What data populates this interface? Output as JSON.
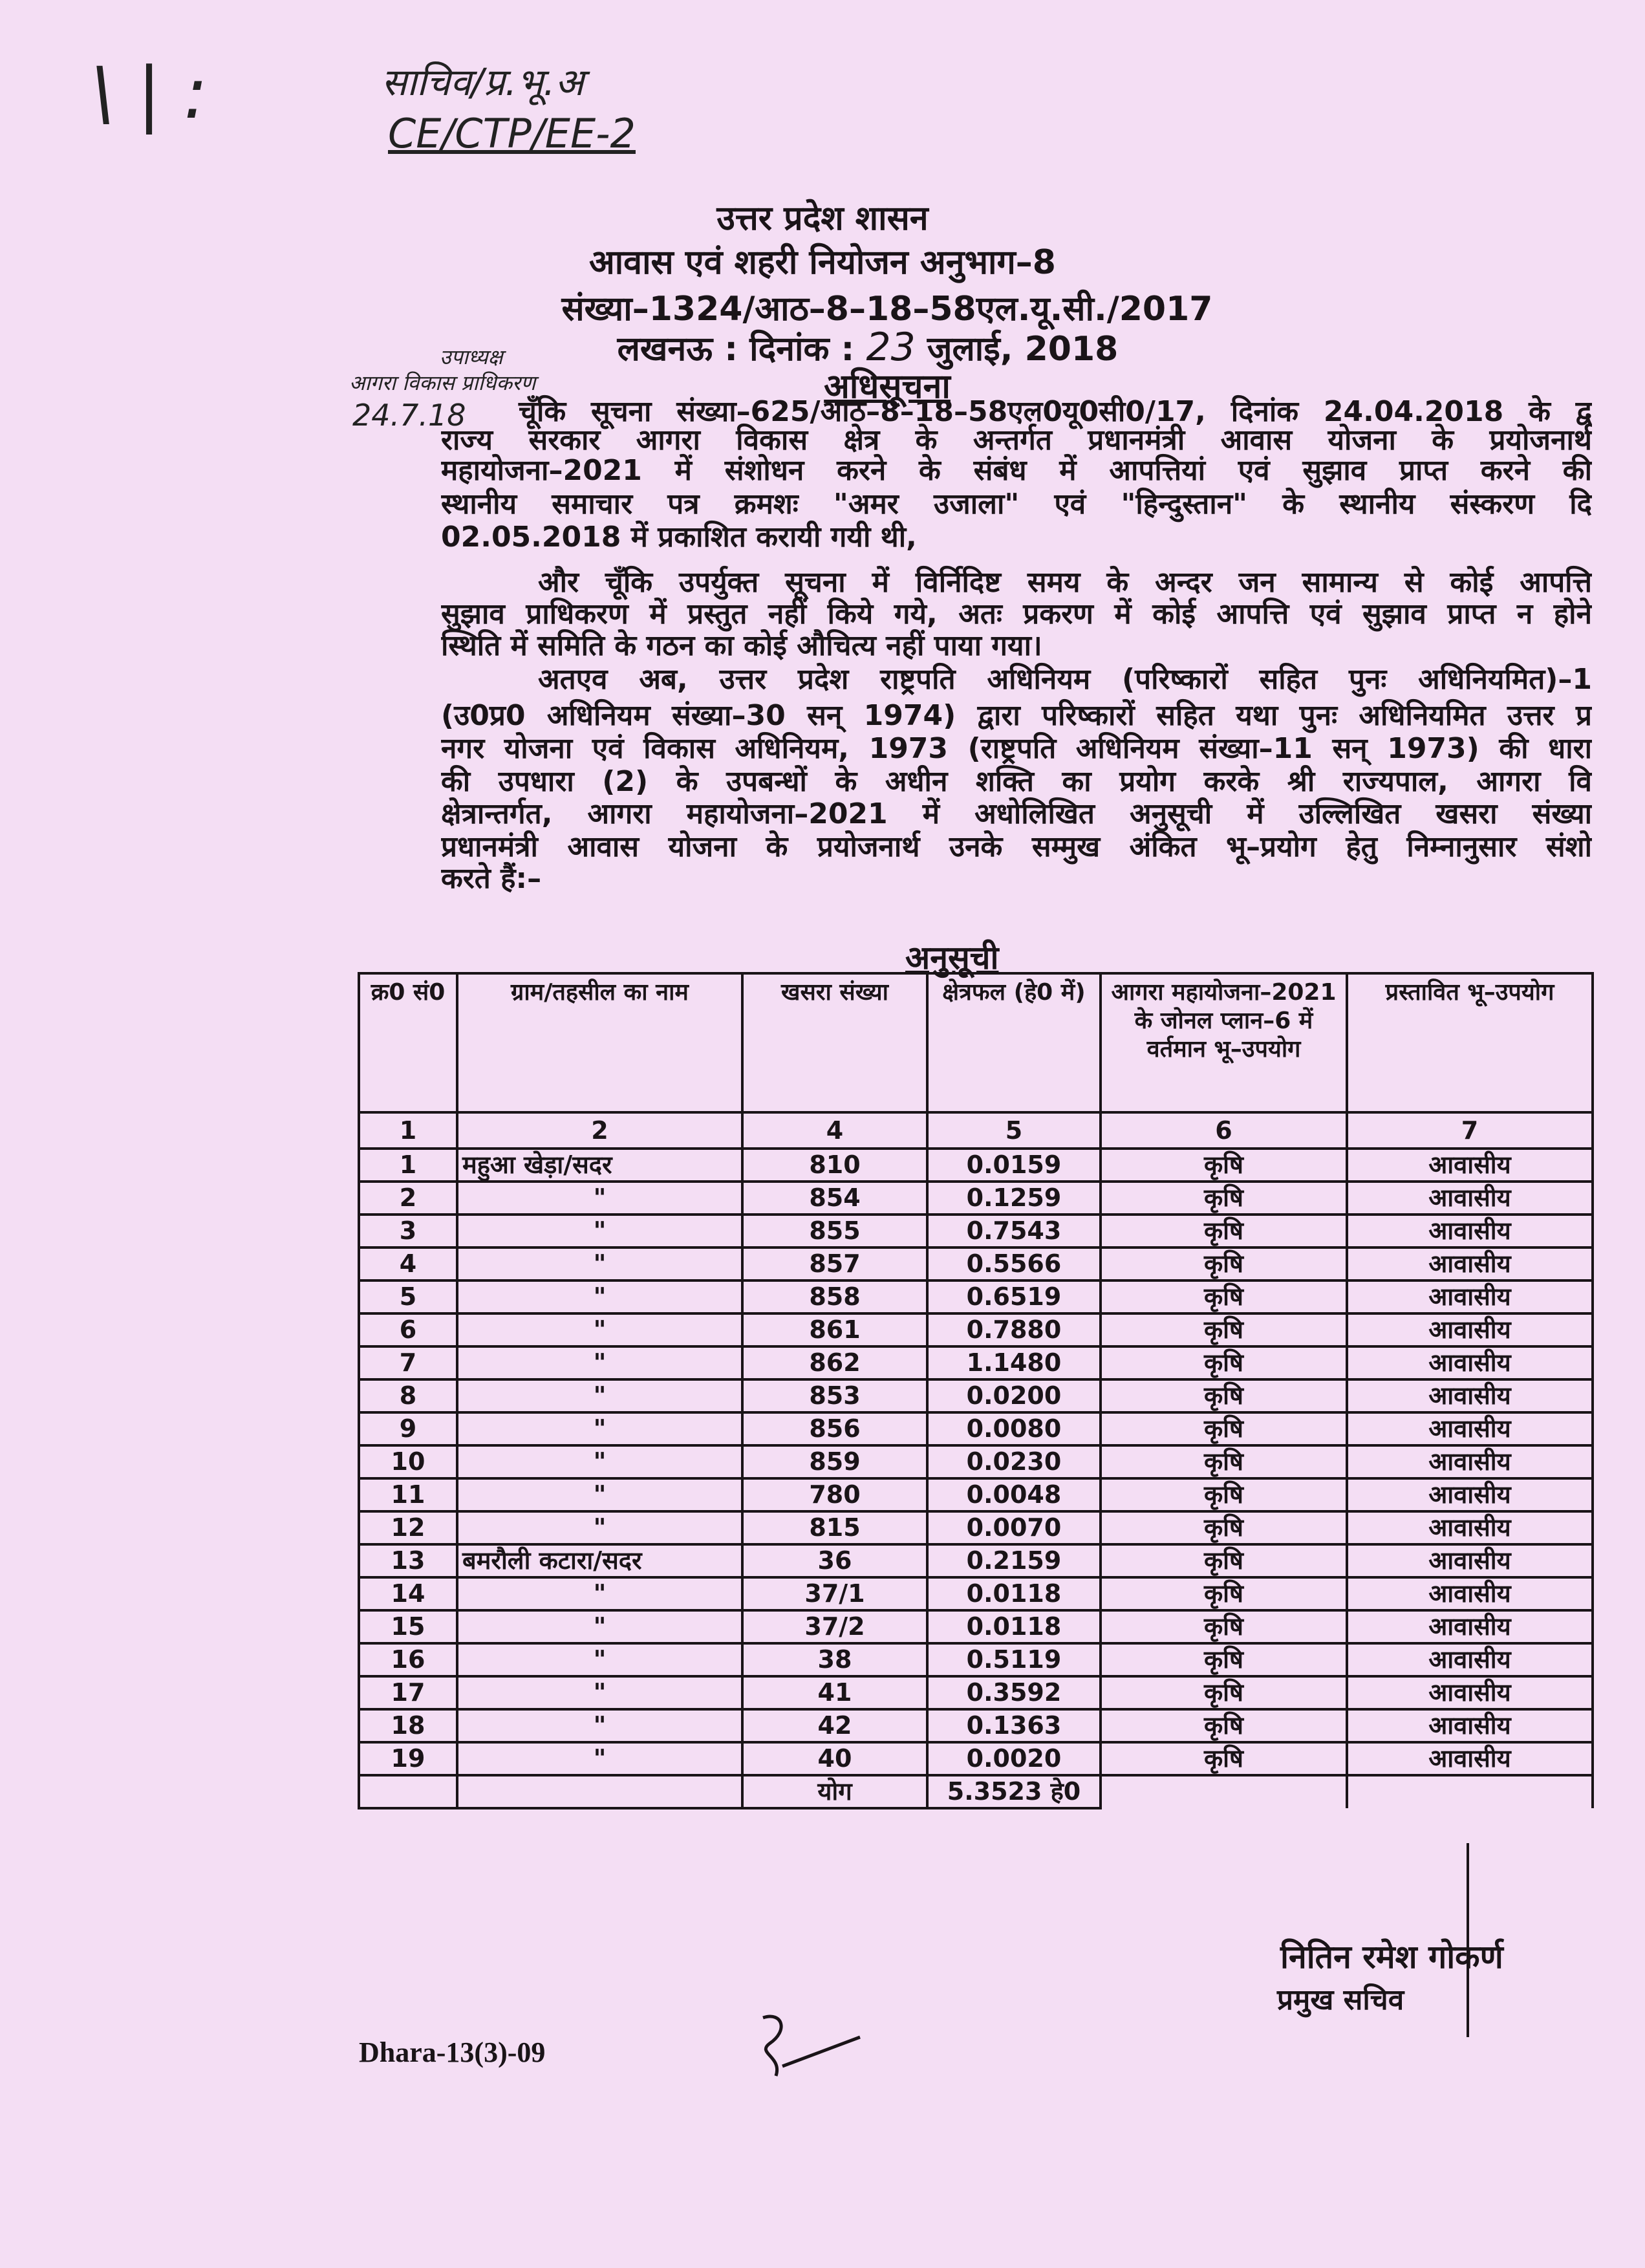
{
  "annotations": {
    "top_left_line1": "साचिव/प्र.भू.अ",
    "top_left_line2": "CE/CTP/EE-2",
    "margin_line1": "उपाध्यक्ष",
    "margin_line2": "आगरा विकास प्राधिकरण",
    "margin_date": "24.7.18"
  },
  "header": {
    "government": "उत्तर प्रदेश शासन",
    "department": "आवास एवं शहरी नियोजन अनुभाग–8",
    "reference": "संख्या–1324/आठ–8–18–58एल.यू.सी./2017",
    "date_prefix": "लखनऊ : दिनांक :",
    "date_day": "23",
    "date_rest": "जुलाई, 2018",
    "title": "अधिसूचना"
  },
  "body_lines": [
    "चूँकि सूचना संख्या–625/आठ–8–18–58एल0यू0सी0/17, दिनांक 24.04.2018 के द्व",
    "राज्य सरकार आगरा विकास क्षेत्र के अन्तर्गत प्रधानमंत्री आवास योजना के प्रयोजनार्थ",
    "महायोजना–2021 में संशोधन करने के संबंध में आपत्तियां एवं सुझाव प्राप्त करने की",
    "स्थानीय समाचार पत्र क्रमशः \"अमर उजाला\" एवं \"हिन्दुस्तान\" के स्थानीय संस्करण दि",
    "02.05.2018 में प्रकाशित करायी गयी थी,",
    "और चूँकि उपर्युक्त सूचना में विर्निदिष्ट समय के अन्दर जन सामान्य से कोई आपत्ति",
    "सुझाव प्राधिकरण में प्रस्तुत नहीं किये गये, अतः प्रकरण में कोई आपत्ति एवं सुझाव प्राप्त न होने",
    "स्थिति में समिति के गठन का कोई औचित्य नहीं पाया गया।",
    "अतएव अब, उत्तर प्रदेश राष्ट्रपति अधिनियम (परिष्कारों सहित पुनः अधिनियमित)–1",
    "(उ0प्र0 अधिनियम संख्या–30 सन् 1974) द्वारा परिष्कारों सहित यथा पुनः अधिनियमित उत्तर प्र",
    "नगर योजना एवं विकास अधिनियम, 1973 (राष्ट्रपति अधिनियम संख्या–11 सन् 1973) की धारा",
    "की उपधारा (2) के उपबन्धों के अधीन शक्ति का प्रयोग करके श्री राज्यपाल, आगरा वि",
    "क्षेत्रान्तर्गत, आगरा महायोजना–2021 में अधोलिखित अनुसूची में उल्लिखित खसरा संख्या",
    "प्रधानमंत्री आवास योजना के प्रयोजनार्थ उनके सम्मुख अंकित भू–प्रयोग हेतु निम्नानुसार संशो",
    "करते हैं:–"
  ],
  "schedule": {
    "title": "अनुसूची",
    "headers": [
      "क्र0 सं0",
      "ग्राम/तहसील का नाम",
      "खसरा संख्या",
      "क्षेत्रफल (हे0 में)",
      "आगरा महायोजना–2021 के जोनल प्लान–6 में वर्तमान भू–उपयोग",
      "प्रस्तावित भू–उपयोग"
    ],
    "column_numbers": [
      "1",
      "2",
      "4",
      "5",
      "6",
      "7"
    ],
    "rows": [
      [
        "1",
        "महुआ खेड़ा/सदर",
        "810",
        "0.0159",
        "कृषि",
        "आवासीय"
      ],
      [
        "2",
        "\"",
        "854",
        "0.1259",
        "कृषि",
        "आवासीय"
      ],
      [
        "3",
        "\"",
        "855",
        "0.7543",
        "कृषि",
        "आवासीय"
      ],
      [
        "4",
        "\"",
        "857",
        "0.5566",
        "कृषि",
        "आवासीय"
      ],
      [
        "5",
        "\"",
        "858",
        "0.6519",
        "कृषि",
        "आवासीय"
      ],
      [
        "6",
        "\"",
        "861",
        "0.7880",
        "कृषि",
        "आवासीय"
      ],
      [
        "7",
        "\"",
        "862",
        "1.1480",
        "कृषि",
        "आवासीय"
      ],
      [
        "8",
        "\"",
        "853",
        "0.0200",
        "कृषि",
        "आवासीय"
      ],
      [
        "9",
        "\"",
        "856",
        "0.0080",
        "कृषि",
        "आवासीय"
      ],
      [
        "10",
        "\"",
        "859",
        "0.0230",
        "कृषि",
        "आवासीय"
      ],
      [
        "11",
        "\"",
        "780",
        "0.0048",
        "कृषि",
        "आवासीय"
      ],
      [
        "12",
        "\"",
        "815",
        "0.0070",
        "कृषि",
        "आवासीय"
      ],
      [
        "13",
        "बमरौली कटारा/सदर",
        "36",
        "0.2159",
        "कृषि",
        "आवासीय"
      ],
      [
        "14",
        "\"",
        "37/1",
        "0.0118",
        "कृषि",
        "आवासीय"
      ],
      [
        "15",
        "\"",
        "37/2",
        "0.0118",
        "कृषि",
        "आवासीय"
      ],
      [
        "16",
        "\"",
        "38",
        "0.5119",
        "कृषि",
        "आवासीय"
      ],
      [
        "17",
        "\"",
        "41",
        "0.3592",
        "कृषि",
        "आवासीय"
      ],
      [
        "18",
        "\"",
        "42",
        "0.1363",
        "कृषि",
        "आवासीय"
      ],
      [
        "19",
        "\"",
        "40",
        "0.0020",
        "कृषि",
        "आवासीय"
      ]
    ],
    "total_label": "योग",
    "total_value": "5.3523 हे0"
  },
  "signature": {
    "name": "नितिन रमेश गोकर्ण",
    "designation": "प्रमुख सचिव"
  },
  "footer": {
    "code": "Dhara-13(3)-09"
  },
  "colors": {
    "paper": "#f4def4",
    "ink": "#1a1418"
  }
}
